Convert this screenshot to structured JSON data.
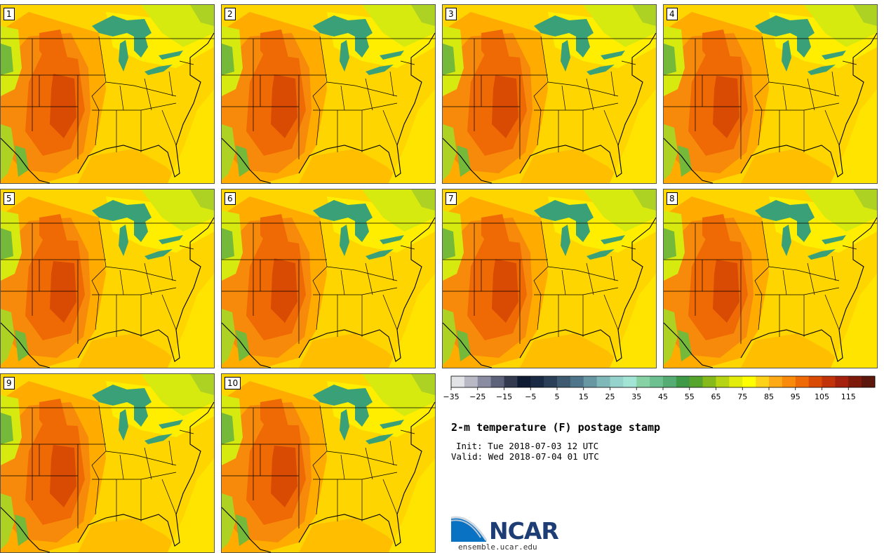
{
  "title": "2-m temperature (F) postage stamp",
  "init_label": "Init:",
  "init_value": "Tue 2018-07-03 12 UTC",
  "valid_label": "Valid:",
  "valid_value": "Wed 2018-07-04 01 UTC",
  "members": [
    "1",
    "2",
    "3",
    "4",
    "5",
    "6",
    "7",
    "8",
    "9",
    "10"
  ],
  "colorbar": {
    "ticks": [
      "−35",
      "−25",
      "−15",
      "−5",
      "5",
      "15",
      "25",
      "35",
      "45",
      "55",
      "65",
      "75",
      "85",
      "95",
      "105",
      "115"
    ],
    "colors": [
      "#e2e3e7",
      "#b9b9c6",
      "#8a8ca1",
      "#5d627b",
      "#33394f",
      "#0f1a33",
      "#1a2a44",
      "#2b3f58",
      "#3e5a70",
      "#4e7589",
      "#6797a3",
      "#80b7b9",
      "#96d3cc",
      "#a3e5d4",
      "#86d2a5",
      "#6dc090",
      "#56ad73",
      "#3f9a48",
      "#54a42e",
      "#86ba1c",
      "#b6d413",
      "#e3ec0b",
      "#ffff00",
      "#ffd21a",
      "#ffaa16",
      "#fa8a0c",
      "#ef6a06",
      "#d94a04",
      "#c1330b",
      "#a4220d",
      "#7e1a0c",
      "#5c180c"
    ]
  },
  "map_colors": {
    "base": "#ffd500",
    "warm": "#ffab00",
    "hot": "#f78a0a",
    "hotter": "#ef6a05",
    "hottest": "#d94a03",
    "mild": "#ffee00",
    "cool": "#d6ea10",
    "cooler": "#aed224",
    "green": "#74b93a",
    "lake": "#3aa078",
    "ocean_gulf": "#ffbf00",
    "ocean_atl": "#ffe400"
  },
  "logo": {
    "text": "NCAR",
    "url": "ensemble.ucar.edu"
  }
}
